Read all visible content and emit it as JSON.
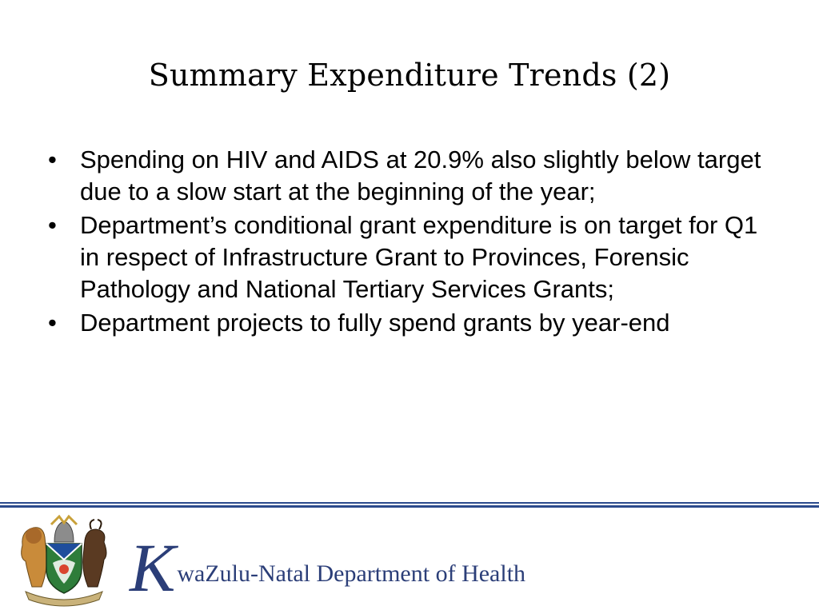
{
  "slide": {
    "title": "Summary Expenditure Trends (2)",
    "bullet_symbol": "•",
    "bullets": [
      "Spending on HIV and AIDS at 20.9% also slightly below target due to a slow start at the beginning of the year;",
      "Department’s conditional grant expenditure is on target for Q1 in respect of Infrastructure Grant to Provinces, Forensic Pathology and National Tertiary Services Grants;",
      "Department projects to fully spend grants by year-end"
    ]
  },
  "footer": {
    "brand_initial": "K",
    "brand_rest": "waZulu-Natal Department of Health",
    "crest_icon": "coat-of-arms-icon",
    "colors": {
      "brand_blue": "#2b3e78",
      "rule_blue": "#2b4a8c"
    }
  }
}
